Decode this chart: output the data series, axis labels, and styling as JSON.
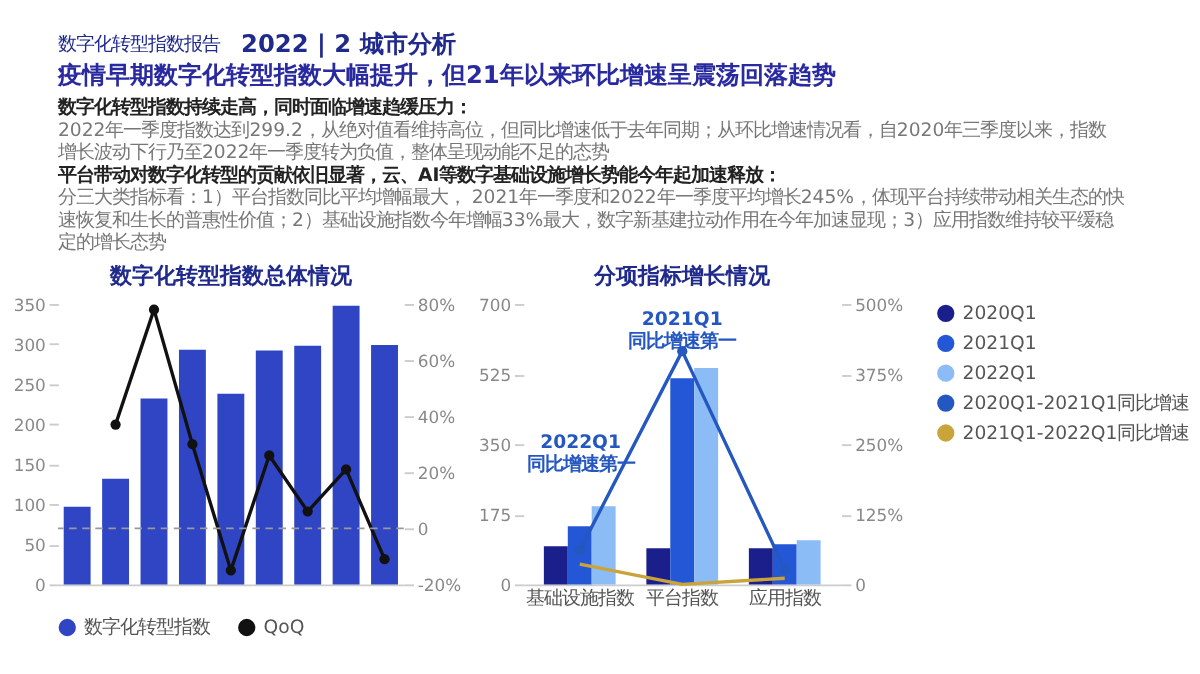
{
  "chart_data": [
    {
      "type": "other",
      "title": "2022 | 2 城市分析",
      "subtitle": "数字化转型指数报告",
      "annotations": [
        "疫情早期数字化转型指数大幅提升，但21年以来环比增速呈震荡回落趋势",
        "数字化转型指数持续走高，同时面临增速趋缓压力：",
        "2022年一季度指数达到299.2，从绝对值看维持高位，但同比增速低于去年同期；从环比增速情况看，自2020年三季度以来，指数增长波动下行乃至2022年一季度转为负值，整体呈现动能不足的态势",
        "平台带动对数字化转型的贡献依旧显著，云、AI等数字基础设施增长势能今年起加速释放：",
        "分三大类指标看：1）平台指数同比平均增幅最大， 2021年一季度和2022年一季度平均增长245%，体现平台持续带动相关生态的快速恢复和生长的普惠性价值；2）基础设施指数今年增幅33%最大，数字新基建拉动作用在今年加速显现；3）应用指数维持较平缓稳定的增长态势"
      ]
    },
    {
      "type": "bar",
      "title": "数字化转型指数总体情况",
      "categories": [
        null,
        null,
        null,
        null,
        null,
        null,
        null,
        null,
        null
      ],
      "series": [
        {
          "name": "数字化转型指数",
          "type": "bar",
          "color": "#2f45c4",
          "values": [
            97,
            132,
            232,
            293,
            238,
            292,
            298,
            348,
            299
          ]
        },
        {
          "name": "QoQ",
          "type": "line",
          "axis": "y2",
          "color": "#111111",
          "marker": "circle",
          "values": [
            null,
            37,
            78,
            30,
            -15,
            26,
            6,
            21,
            -11
          ]
        }
      ],
      "ylim": [
        0,
        350
      ],
      "yticks": [
        0,
        50,
        100,
        150,
        200,
        250,
        300,
        350
      ],
      "y2lim": [
        -20,
        80
      ],
      "y2ticks": [
        {
          "value": -20,
          "label": "-20%"
        },
        0,
        {
          "value": 20,
          "label": "20%"
        },
        {
          "value": 40,
          "label": "40%"
        },
        {
          "value": 60,
          "label": "60%"
        },
        {
          "value": 80,
          "label": "80%"
        }
      ],
      "ref_lines": [
        {
          "axis": "y2",
          "value": 0,
          "color": "#999999",
          "line_style": "dashed"
        }
      ],
      "legend": "bottom",
      "tick_labels": "y"
    },
    {
      "type": "bar",
      "title": "分项指标增长情况",
      "categories": [
        "基础设施指数",
        "平台指数",
        "应用指数"
      ],
      "series": [
        {
          "name": "2020Q1",
          "type": "bar",
          "color": "#1a1f8c",
          "values": [
            95,
            90,
            90
          ]
        },
        {
          "name": "2021Q1",
          "type": "bar",
          "color": "#2457d6",
          "values": [
            145,
            515,
            100
          ]
        },
        {
          "name": "2022Q1",
          "type": "bar",
          "color": "#8cbcf5",
          "values": [
            195,
            540,
            110
          ]
        },
        {
          "name": "2020Q1-2021Q1同比增速",
          "type": "line",
          "axis": "y2",
          "color": "#2457c0",
          "marker": "circle",
          "values": [
            61,
            416,
            27
          ]
        },
        {
          "name": "2021Q1-2022Q1同比增速",
          "type": "line",
          "axis": "y2",
          "color": "#c9a43a",
          "values": [
            36,
            0,
            11
          ]
        }
      ],
      "ylim": [
        0,
        700
      ],
      "yticks": [
        0,
        175,
        350,
        525,
        700
      ],
      "y2lim": [
        0,
        500
      ],
      "y2ticks": [
        0,
        {
          "value": 125,
          "label": "125%"
        },
        {
          "value": 250,
          "label": "250%"
        },
        {
          "value": 375,
          "label": "375%"
        },
        {
          "value": 500,
          "label": "500%"
        }
      ],
      "annotations": [
        "2022Q1 同比增速第一",
        "2021Q1 同比增速第一"
      ],
      "legend": "top right"
    }
  ]
}
